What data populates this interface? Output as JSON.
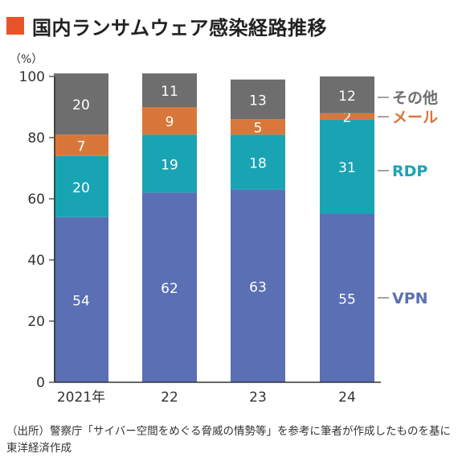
{
  "title": "国内ランサムウェア感染経路推移",
  "chart_data": {
    "type": "bar",
    "stacked": true,
    "unit_label": "（%）",
    "ylim": [
      0,
      100
    ],
    "yticks": [
      0,
      20,
      40,
      60,
      80,
      100
    ],
    "categories": [
      "2021年",
      "22",
      "23",
      "24"
    ],
    "series": [
      {
        "name": "VPN",
        "values": [
          54,
          62,
          63,
          55
        ],
        "color": "#5a6fb4"
      },
      {
        "name": "RDP",
        "values": [
          20,
          19,
          18,
          31
        ],
        "color": "#19a4b4"
      },
      {
        "name": "メール",
        "values": [
          7,
          9,
          5,
          2
        ],
        "color": "#d9773a"
      },
      {
        "name": "その他",
        "values": [
          20,
          11,
          13,
          12
        ],
        "color": "#6e6e6e"
      }
    ],
    "legend_placement": "right"
  },
  "note": "（出所）警察庁「サイバー空間をめぐる脅威の情勢等」を参考に筆者が作成したものを基に東洋経済作成"
}
